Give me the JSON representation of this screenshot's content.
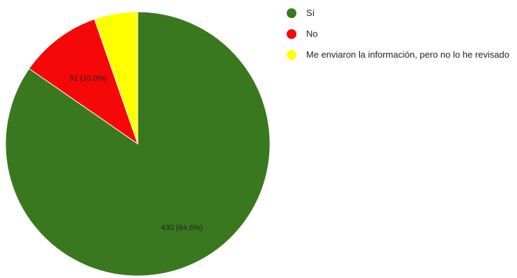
{
  "chart_data": {
    "type": "pie",
    "slices": [
      {
        "label": "Sí",
        "value": 430,
        "percent": 84.6,
        "display": "430 (84,6%)",
        "color": "#3a7820"
      },
      {
        "label": "No",
        "value": 51,
        "percent": 10.0,
        "display": "51 (10,0%)",
        "color": "#f60808"
      },
      {
        "label": "Me enviaron la información, pero no lo he revisado",
        "value": 27,
        "percent": 5.4,
        "display": "",
        "color": "#ffff00"
      }
    ],
    "legend_position": "right"
  }
}
